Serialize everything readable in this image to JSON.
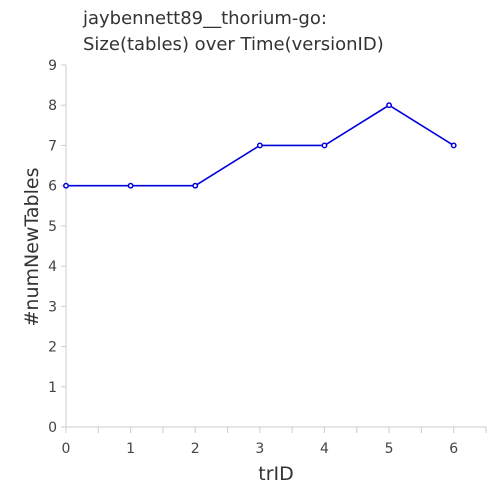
{
  "chart_data": {
    "type": "line",
    "title_lines": [
      "jaybennett89__thorium-go:",
      "Size(tables) over Time(versionID)"
    ],
    "xlabel": "trID",
    "ylabel": "#numNewTables",
    "x": [
      0,
      1,
      2,
      3,
      4,
      5,
      6
    ],
    "y": [
      6,
      6,
      6,
      7,
      7,
      8,
      7
    ],
    "xlim": [
      0,
      6.5
    ],
    "ylim": [
      0,
      9
    ],
    "xticks": [
      0,
      1,
      2,
      3,
      4,
      5,
      6
    ],
    "yticks": [
      0,
      1,
      2,
      3,
      4,
      5,
      6,
      7,
      8,
      9
    ],
    "grid": false,
    "series_color": "#0000dd"
  }
}
